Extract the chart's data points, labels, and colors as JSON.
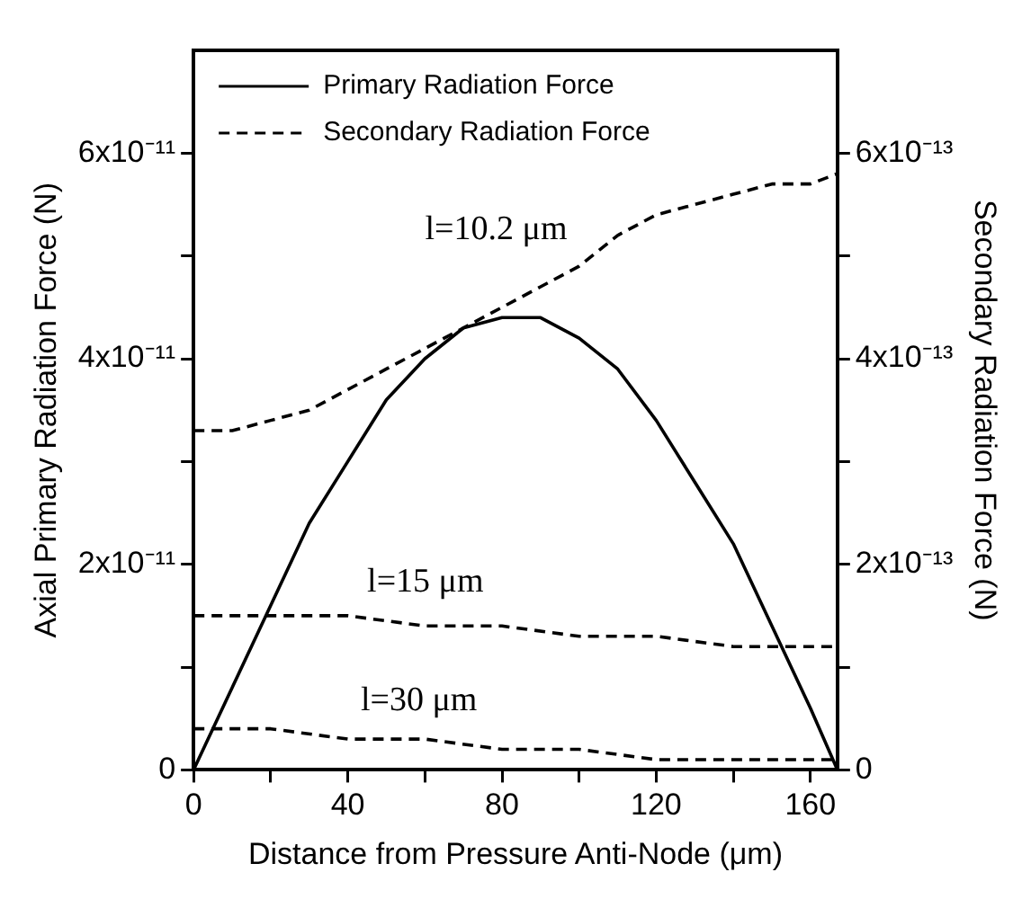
{
  "chart_data": {
    "type": "line",
    "xlabel": "Distance from Pressure Anti-Node (μm)",
    "ylabel": "Axial Primary Radiation Force (N)",
    "y2label": "Secondary Radiation Force (N)",
    "xlim": [
      0,
      167
    ],
    "xticks": [
      0,
      {
        "value": 20,
        "label": null
      },
      40,
      {
        "value": 60,
        "label": null
      },
      80,
      {
        "value": 100,
        "label": null
      },
      120,
      {
        "value": 140,
        "label": null
      },
      160
    ],
    "ylim": [
      0,
      7e-11
    ],
    "yticks": [
      {
        "value": 0,
        "label": "0"
      },
      {
        "value": 1e-11,
        "label": null
      },
      {
        "value": 2e-11,
        "label": "2x10⁻¹¹"
      },
      {
        "value": 3e-11,
        "label": null
      },
      {
        "value": 4e-11,
        "label": "4x10⁻¹¹"
      },
      {
        "value": 5e-11,
        "label": null
      },
      {
        "value": 6e-11,
        "label": "6x10⁻¹¹"
      }
    ],
    "y2lim": [
      0,
      7e-13
    ],
    "y2ticks": [
      {
        "value": 0,
        "label": "0"
      },
      {
        "value": 1e-13,
        "label": null
      },
      {
        "value": 2e-13,
        "label": "2x10⁻¹³"
      },
      {
        "value": 3e-13,
        "label": null
      },
      {
        "value": 4e-13,
        "label": "4x10⁻¹³"
      },
      {
        "value": 5e-13,
        "label": null
      },
      {
        "value": 6e-13,
        "label": "6x10⁻¹³"
      }
    ],
    "grid": false,
    "legend": "top",
    "marker": "none",
    "series": [
      {
        "name": "Primary Radiation Force",
        "color": "#000000",
        "line_style": "solid",
        "x": [
          0,
          10,
          20,
          30,
          40,
          50,
          60,
          70,
          80,
          84,
          90,
          100,
          110,
          120,
          130,
          140,
          150,
          160,
          167
        ],
        "values": [
          0,
          8e-12,
          1.6e-11,
          2.4e-11,
          3e-11,
          3.6e-11,
          4e-11,
          4.3e-11,
          4.4e-11,
          4.4e-11,
          4.4e-11,
          4.2e-11,
          3.9e-11,
          3.4e-11,
          2.8e-11,
          2.2e-11,
          1.4e-11,
          6e-12,
          0
        ]
      },
      {
        "name": "Secondary Radiation Force",
        "color": "#000000",
        "line_style": "dashed",
        "axis": "y2",
        "x": [
          0,
          10,
          20,
          30,
          40,
          50,
          60,
          70,
          80,
          90,
          100,
          110,
          120,
          130,
          140,
          150,
          160,
          167
        ],
        "values": [
          3.3e-13,
          3.3e-13,
          3.4e-13,
          3.5e-13,
          3.7e-13,
          3.9e-13,
          4.1e-13,
          4.3e-13,
          4.5e-13,
          4.7e-13,
          4.9e-13,
          5.2e-13,
          5.4e-13,
          5.5e-13,
          5.6e-13,
          5.7e-13,
          5.7e-13,
          5.8e-13
        ]
      },
      {
        "color": "#000000",
        "line_style": "dashed",
        "axis": "y2",
        "x": [
          0,
          20,
          40,
          60,
          80,
          100,
          120,
          140,
          167
        ],
        "values": [
          1.5e-13,
          1.5e-13,
          1.5e-13,
          1.4e-13,
          1.4e-13,
          1.3e-13,
          1.3e-13,
          1.2e-13,
          1.2e-13
        ]
      },
      {
        "color": "#000000",
        "line_style": "dashed",
        "axis": "y2",
        "x": [
          0,
          20,
          40,
          60,
          80,
          100,
          120,
          140,
          167
        ],
        "values": [
          4e-14,
          4e-14,
          3e-14,
          3e-14,
          2e-14,
          2e-14,
          1e-14,
          1e-14,
          1e-14
        ]
      }
    ],
    "annotations": [
      "l=10.2 μm",
      "l=15 μm",
      "l=30 μm"
    ]
  }
}
